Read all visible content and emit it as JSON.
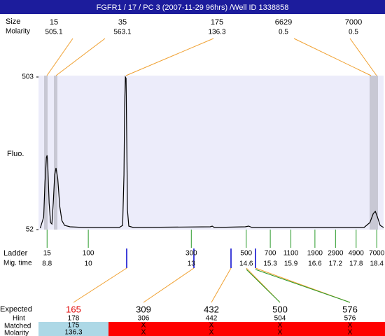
{
  "header": {
    "title": "FGFR1 / 17 / PC 3 (2007-11-29 96hrs) /Well ID 1338858"
  },
  "peaks": {
    "size_label": "Size",
    "molarity_label": "Molarity",
    "sizes": [
      15,
      35,
      175,
      6629,
      7000
    ],
    "molarity": [
      505.1,
      563.1,
      136.3,
      0.5,
      0.5
    ]
  },
  "chart_data": {
    "type": "line",
    "y_label": "Fluo.",
    "color": "#000000",
    "x": [
      8.6,
      8.7,
      8.74,
      8.78,
      8.8,
      8.82,
      8.86,
      8.9,
      8.94,
      8.98,
      9.02,
      9.06,
      9.11,
      9.17,
      9.23,
      9.31,
      9.47,
      9.88,
      10.9,
      11.0,
      11.04,
      11.06,
      11.08,
      11.1,
      11.12,
      11.14,
      11.18,
      11.31,
      13.55,
      13.61,
      13.67,
      14.57,
      14.67,
      14.77,
      18.03,
      18.2,
      18.3,
      18.36,
      18.42,
      18.5,
      18.6
    ],
    "values": [
      56.1,
      89.2,
      192.6,
      265.1,
      271.3,
      244.4,
      130.6,
      72.7,
      68.6,
      130.6,
      213.4,
      234.1,
      203.0,
      120.3,
      78.9,
      64.4,
      60.3,
      58.2,
      58.2,
      64.4,
      213.4,
      420.3,
      503,
      499,
      316.8,
      110,
      62.3,
      58.2,
      60.3,
      62.3,
      58.2,
      60.3,
      62.3,
      58.2,
      58.2,
      72.7,
      99.6,
      105.8,
      89.2,
      64.4,
      58.2
    ],
    "xlim": [
      8.55,
      18.6
    ],
    "ylim": [
      52,
      503
    ],
    "yticks": [
      52,
      503
    ]
  },
  "ladder": {
    "label": "Ladder",
    "time_label": "Mig. time",
    "sizes": [
      15,
      100,
      300,
      500,
      700,
      1100,
      1900,
      2900,
      4900,
      7000
    ],
    "times": [
      8.8,
      10,
      13,
      14.6,
      15.3,
      15.9,
      16.6,
      17.2,
      17.8,
      18.4
    ]
  },
  "expected": {
    "label": "Expected",
    "hint_label": "Hint",
    "matched_label": "Matched",
    "molarity_label": "Molarity",
    "expected": [
      165,
      309,
      432,
      500,
      576
    ],
    "hint": [
      178,
      306,
      442,
      504,
      576
    ],
    "matched": [
      "175",
      "X",
      "X",
      "X",
      "X"
    ],
    "molarity": [
      "136.3",
      "X",
      "X",
      "X",
      "X"
    ]
  }
}
